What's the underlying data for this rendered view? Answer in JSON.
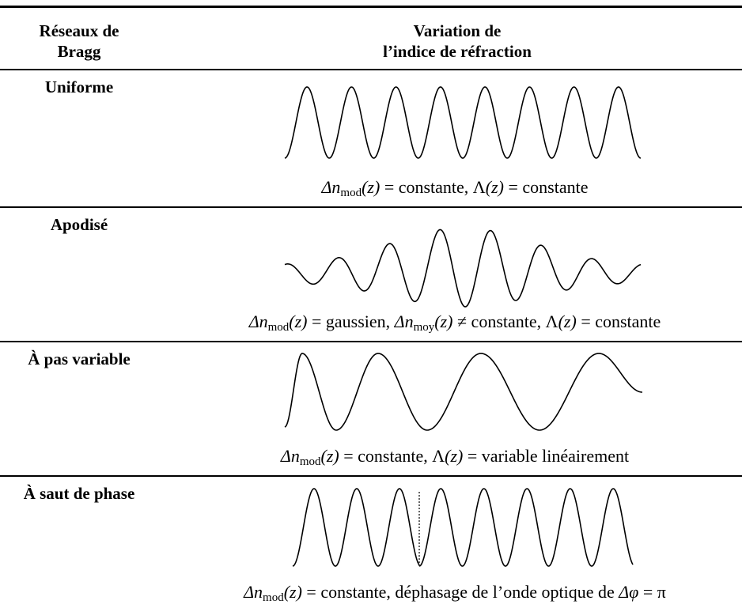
{
  "header": [
    [
      "Réseaux de",
      "Bragg"
    ],
    [
      "Variation de",
      "l’indice de réfraction"
    ]
  ],
  "rows": [
    {
      "name": "Uniforme",
      "caption": [
        "Δn",
        "mod",
        "(z)",
        " = constante, Λ",
        "(z)",
        " = constante"
      ]
    },
    {
      "name": "Apodisé",
      "caption": [
        "Δn",
        "mod",
        "(z)",
        " = gaussien, ",
        "Δn",
        "moy",
        "(z)",
        " ≠ constante, Λ",
        "(z)",
        " = constante"
      ]
    },
    {
      "name": "À pas variable",
      "caption": [
        "Δn",
        "mod",
        "(z)",
        " = constante, Λ",
        "(z)",
        " = variable linéairement"
      ]
    },
    {
      "name": "À saut de phase",
      "caption": [
        "Δn",
        "mod",
        "(z)",
        " = constante, déphasage de l’onde optique de ",
        "Δφ",
        " = π"
      ]
    }
  ]
}
